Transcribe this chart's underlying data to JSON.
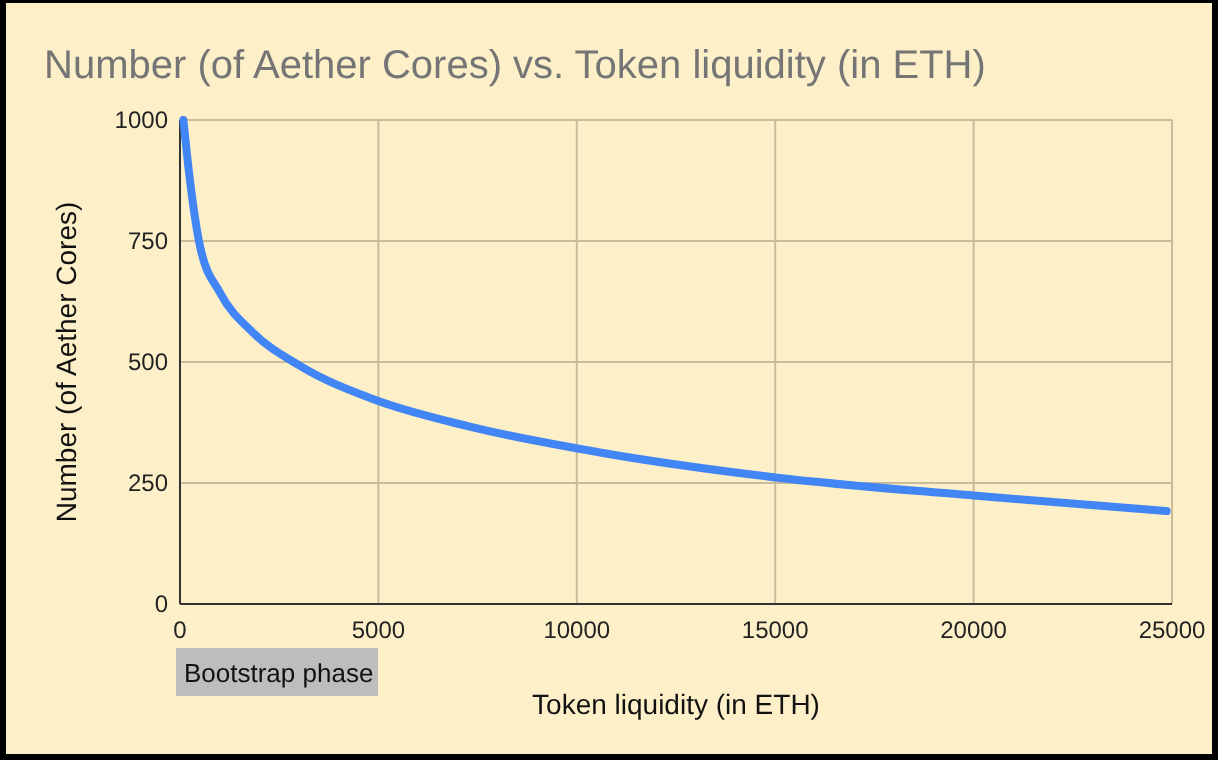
{
  "chart_data": {
    "type": "line",
    "title": "Number (of Aether Cores) vs. Token liquidity (in ETH)",
    "xlabel": "Token liquidity (in ETH)",
    "ylabel": "Number (of Aether Cores)",
    "x": [
      85,
      250,
      505,
      1010,
      1850,
      3025,
      4875,
      7225,
      10585,
      14955,
      19995,
      24865
    ],
    "series": [
      {
        "color": "#4285f4",
        "values": [
          1000,
          876,
          739,
          643,
          560,
          492,
          423,
          368,
          313,
          262,
          224,
          192
        ]
      }
    ],
    "xlim": [
      0,
      25000
    ],
    "xticks": [
      0,
      5000,
      10000,
      15000,
      20000,
      25000
    ],
    "ylim": [
      0,
      1000
    ],
    "yticks": [
      0,
      250,
      500,
      750,
      1000
    ],
    "grid": true,
    "marker": "none",
    "line_style": "solid",
    "annotations": [
      "Bootstrap phase"
    ]
  }
}
